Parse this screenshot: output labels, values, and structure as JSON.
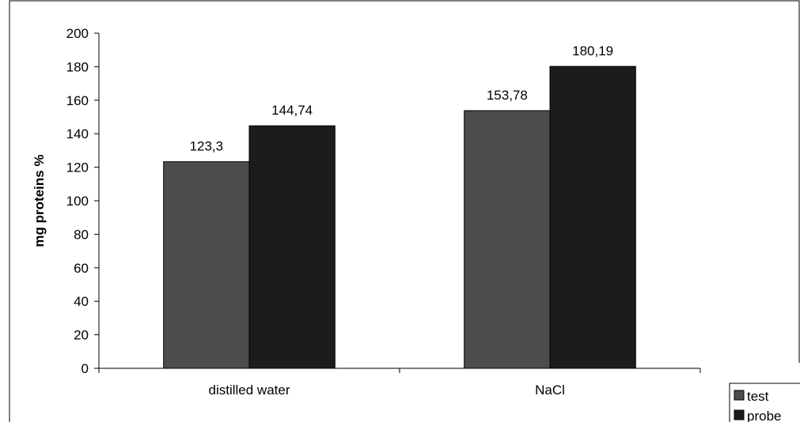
{
  "chart_data": {
    "type": "bar",
    "title": "",
    "xlabel": "",
    "ylabel": "mg proteins %",
    "ylim": [
      0,
      200
    ],
    "ytick_step": 20,
    "grid": false,
    "legend_position": "bottom-right",
    "categories": [
      "distilled water",
      "NaCl"
    ],
    "series": [
      {
        "name": "test",
        "values": [
          123.3,
          153.78
        ],
        "labels": [
          "123,3",
          "153,78"
        ],
        "color": "#4d4d4d"
      },
      {
        "name": "probe",
        "values": [
          144.74,
          180.19
        ],
        "labels": [
          "144,74",
          "180,19"
        ],
        "color": "#1c1c1c"
      }
    ]
  }
}
